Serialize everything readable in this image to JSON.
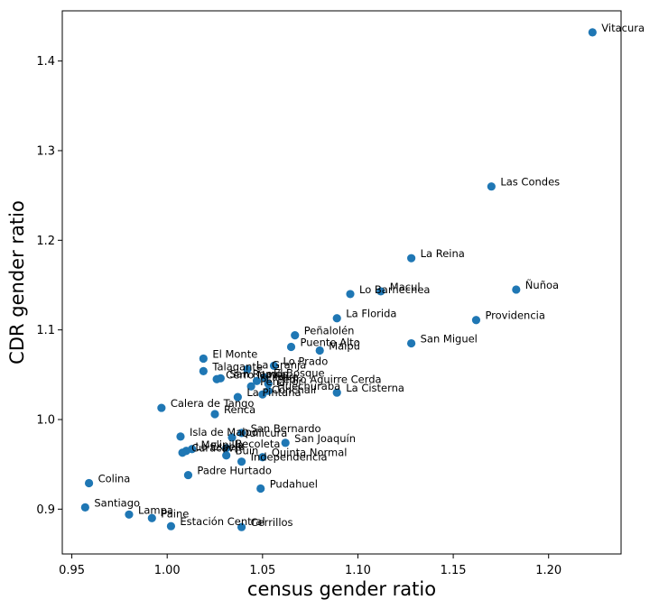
{
  "chart_data": {
    "type": "scatter",
    "title": "",
    "xlabel": "census gender ratio",
    "ylabel": "CDR gender ratio",
    "xlim": [
      0.945,
      1.238
    ],
    "ylim": [
      0.85,
      1.456
    ],
    "xticks": [
      0.95,
      1.0,
      1.05,
      1.1,
      1.15,
      1.2
    ],
    "xtick_labels": [
      "0.95",
      "1.00",
      "1.05",
      "1.10",
      "1.15",
      "1.20"
    ],
    "yticks": [
      0.9,
      1.0,
      1.1,
      1.2,
      1.3,
      1.4
    ],
    "ytick_labels": [
      "0.9",
      "1.0",
      "1.1",
      "1.2",
      "1.3",
      "1.4"
    ],
    "grid": false,
    "point_color": "#1f77b4",
    "points": [
      {
        "label": "Vitacura",
        "x": 1.223,
        "y": 1.432
      },
      {
        "label": "Las Condes",
        "x": 1.17,
        "y": 1.26
      },
      {
        "label": "La Reina",
        "x": 1.128,
        "y": 1.18
      },
      {
        "label": "Ñuñoa",
        "x": 1.183,
        "y": 1.145
      },
      {
        "label": "Macul",
        "x": 1.112,
        "y": 1.143
      },
      {
        "label": "Lo Barnechea",
        "x": 1.096,
        "y": 1.14
      },
      {
        "label": "La Florida",
        "x": 1.089,
        "y": 1.113
      },
      {
        "label": "Providencia",
        "x": 1.162,
        "y": 1.111
      },
      {
        "label": "Peñalolén",
        "x": 1.067,
        "y": 1.094
      },
      {
        "label": "San Miguel",
        "x": 1.128,
        "y": 1.085
      },
      {
        "label": "Puente Alto",
        "x": 1.065,
        "y": 1.081
      },
      {
        "label": "Maipú",
        "x": 1.08,
        "y": 1.077
      },
      {
        "label": "El Monte",
        "x": 1.019,
        "y": 1.068
      },
      {
        "label": "Lo Prado",
        "x": 1.056,
        "y": 1.06
      },
      {
        "label": "Talagante",
        "x": 1.019,
        "y": 1.054
      },
      {
        "label": "La Granja",
        "x": 1.042,
        "y": 1.056
      },
      {
        "label": "San Ramón",
        "x": 1.028,
        "y": 1.046
      },
      {
        "label": "Cerro Navia",
        "x": 1.026,
        "y": 1.045
      },
      {
        "label": "Pirque",
        "x": 1.047,
        "y": 1.043
      },
      {
        "label": "El Bosque",
        "x": 1.051,
        "y": 1.047
      },
      {
        "label": "Pedro Aguirre Cerda",
        "x": 1.053,
        "y": 1.04
      },
      {
        "label": "Peñaflor",
        "x": 1.044,
        "y": 1.037
      },
      {
        "label": "Huechuraba",
        "x": 1.053,
        "y": 1.032
      },
      {
        "label": "La Cisterna",
        "x": 1.089,
        "y": 1.03
      },
      {
        "label": "La Pintana",
        "x": 1.037,
        "y": 1.025
      },
      {
        "label": "Conchalí",
        "x": 1.05,
        "y": 1.028
      },
      {
        "label": "Calera de Tango",
        "x": 0.997,
        "y": 1.013
      },
      {
        "label": "Renca",
        "x": 1.025,
        "y": 1.006
      },
      {
        "label": "San Bernardo",
        "x": 1.039,
        "y": 0.985
      },
      {
        "label": "Isla de Maipo",
        "x": 1.007,
        "y": 0.981
      },
      {
        "label": "Quilicura",
        "x": 1.034,
        "y": 0.98
      },
      {
        "label": "San Joaquín",
        "x": 1.062,
        "y": 0.974
      },
      {
        "label": "Recoleta",
        "x": 1.031,
        "y": 0.968
      },
      {
        "label": "Melipilla",
        "x": 1.013,
        "y": 0.967
      },
      {
        "label": "Lo Espejo",
        "x": 1.01,
        "y": 0.965
      },
      {
        "label": "Curacaví",
        "x": 1.008,
        "y": 0.963
      },
      {
        "label": "Buin",
        "x": 1.031,
        "y": 0.96
      },
      {
        "label": "Quinta Normal",
        "x": 1.05,
        "y": 0.958
      },
      {
        "label": "Independencia",
        "x": 1.039,
        "y": 0.953
      },
      {
        "label": "Padre Hurtado",
        "x": 1.011,
        "y": 0.938
      },
      {
        "label": "Colina",
        "x": 0.959,
        "y": 0.929
      },
      {
        "label": "Pudahuel",
        "x": 1.049,
        "y": 0.923
      },
      {
        "label": "Santiago",
        "x": 0.957,
        "y": 0.902
      },
      {
        "label": "Lampa",
        "x": 0.98,
        "y": 0.894
      },
      {
        "label": "Paine",
        "x": 0.992,
        "y": 0.89
      },
      {
        "label": "Estación Central",
        "x": 1.002,
        "y": 0.881
      },
      {
        "label": "Cerrillos",
        "x": 1.039,
        "y": 0.88
      }
    ]
  }
}
